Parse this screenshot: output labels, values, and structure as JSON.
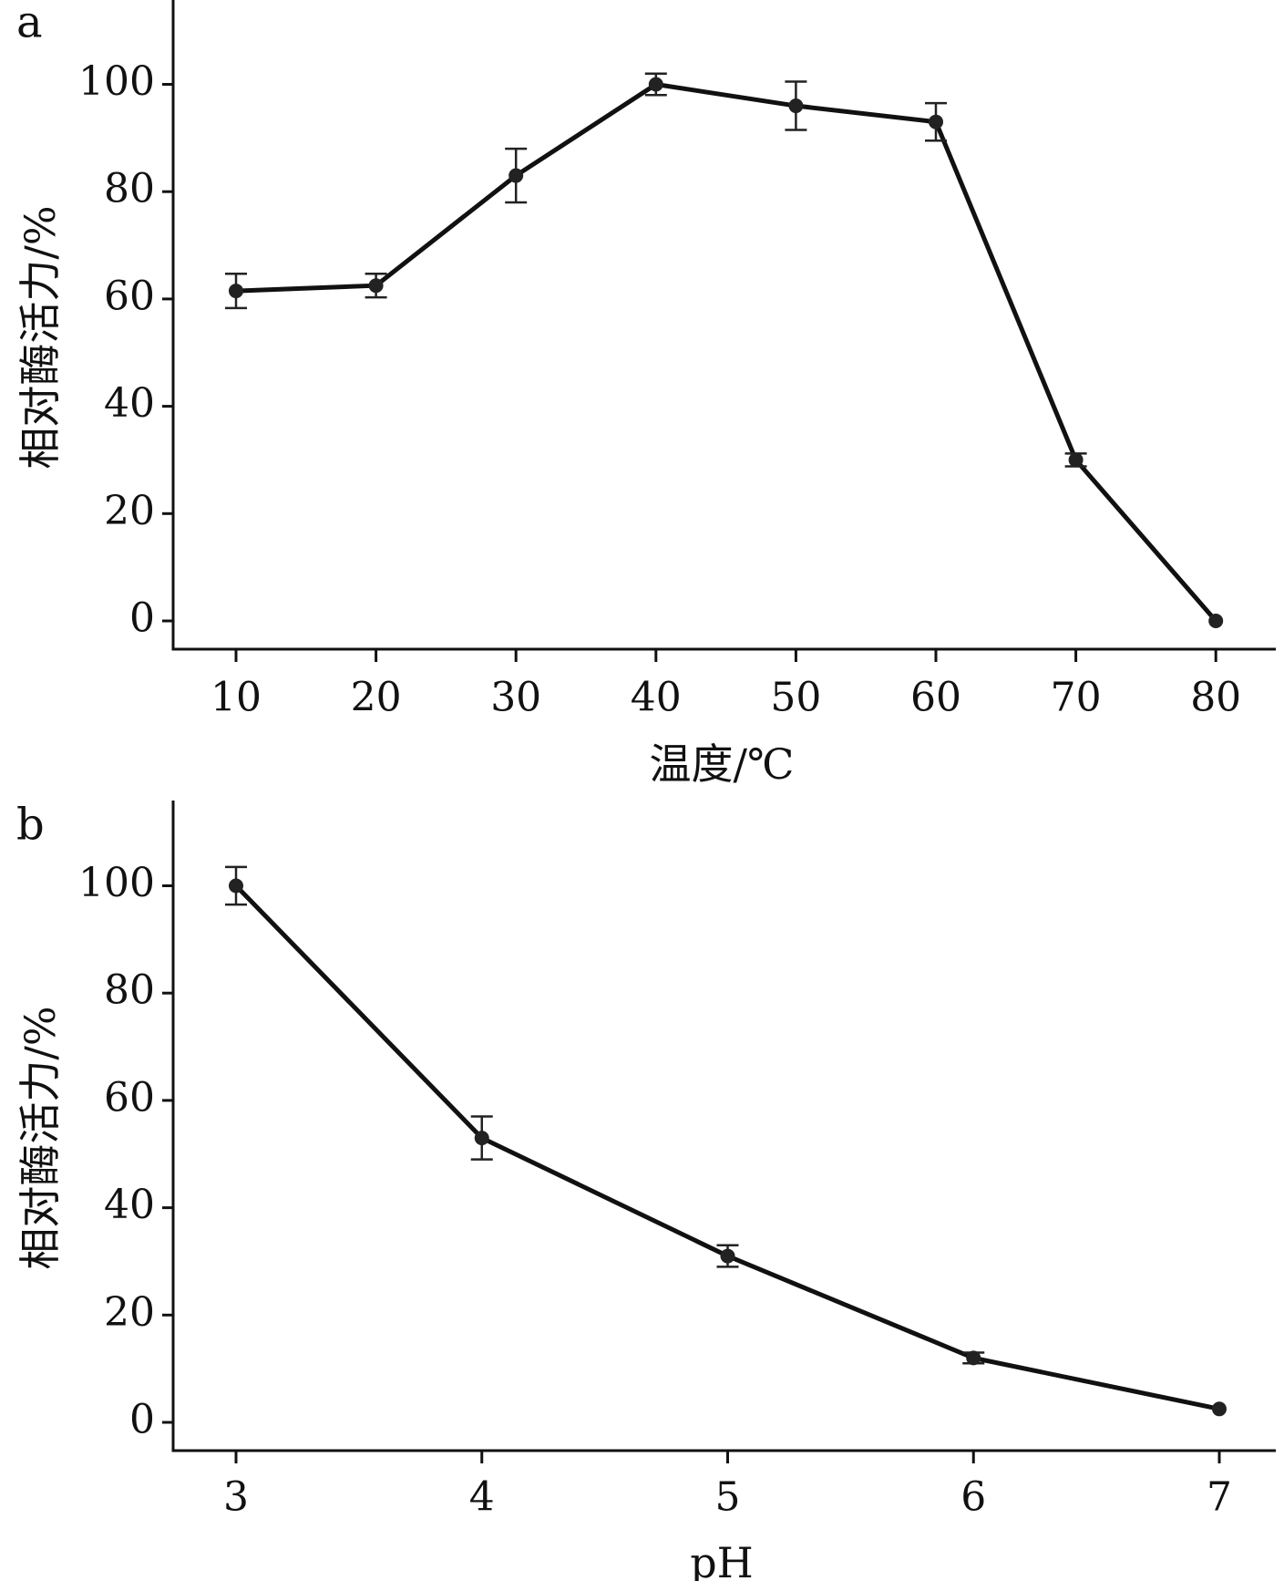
{
  "chart_data": [
    {
      "type": "line",
      "panel_label": "a",
      "xlabel": "温度/℃",
      "ylabel": "相对酶活力/%",
      "ylim": [
        0,
        115
      ],
      "x_ticks": [
        "10",
        "20",
        "30",
        "40",
        "50",
        "60",
        "70",
        "80"
      ],
      "y_ticks": [
        "0",
        "20",
        "40",
        "60",
        "80",
        "100"
      ],
      "x": [
        10,
        20,
        30,
        40,
        50,
        60,
        70,
        80
      ],
      "values": [
        61.5,
        62.5,
        83,
        100,
        96,
        93,
        30,
        0
      ],
      "error": [
        3.2,
        2.2,
        5,
        2,
        4.5,
        3.5,
        1.2,
        0
      ],
      "grid": false,
      "legend": false,
      "error_bars": true,
      "colors": {
        "line": "#111111",
        "marker": "#222222",
        "axis": "#111111"
      }
    },
    {
      "type": "line",
      "panel_label": "b",
      "xlabel": "pH",
      "ylabel": "相对酶活力/%",
      "ylim": [
        0,
        115
      ],
      "x_ticks": [
        "3",
        "4",
        "5",
        "6",
        "7"
      ],
      "y_ticks": [
        "0",
        "20",
        "40",
        "60",
        "80",
        "100"
      ],
      "x": [
        3,
        4,
        5,
        6,
        7
      ],
      "values": [
        100,
        53,
        31,
        12,
        2.5
      ],
      "error": [
        3.5,
        4,
        2,
        1,
        0
      ],
      "grid": false,
      "legend": false,
      "error_bars": true,
      "colors": {
        "line": "#111111",
        "marker": "#222222",
        "axis": "#111111"
      }
    }
  ]
}
